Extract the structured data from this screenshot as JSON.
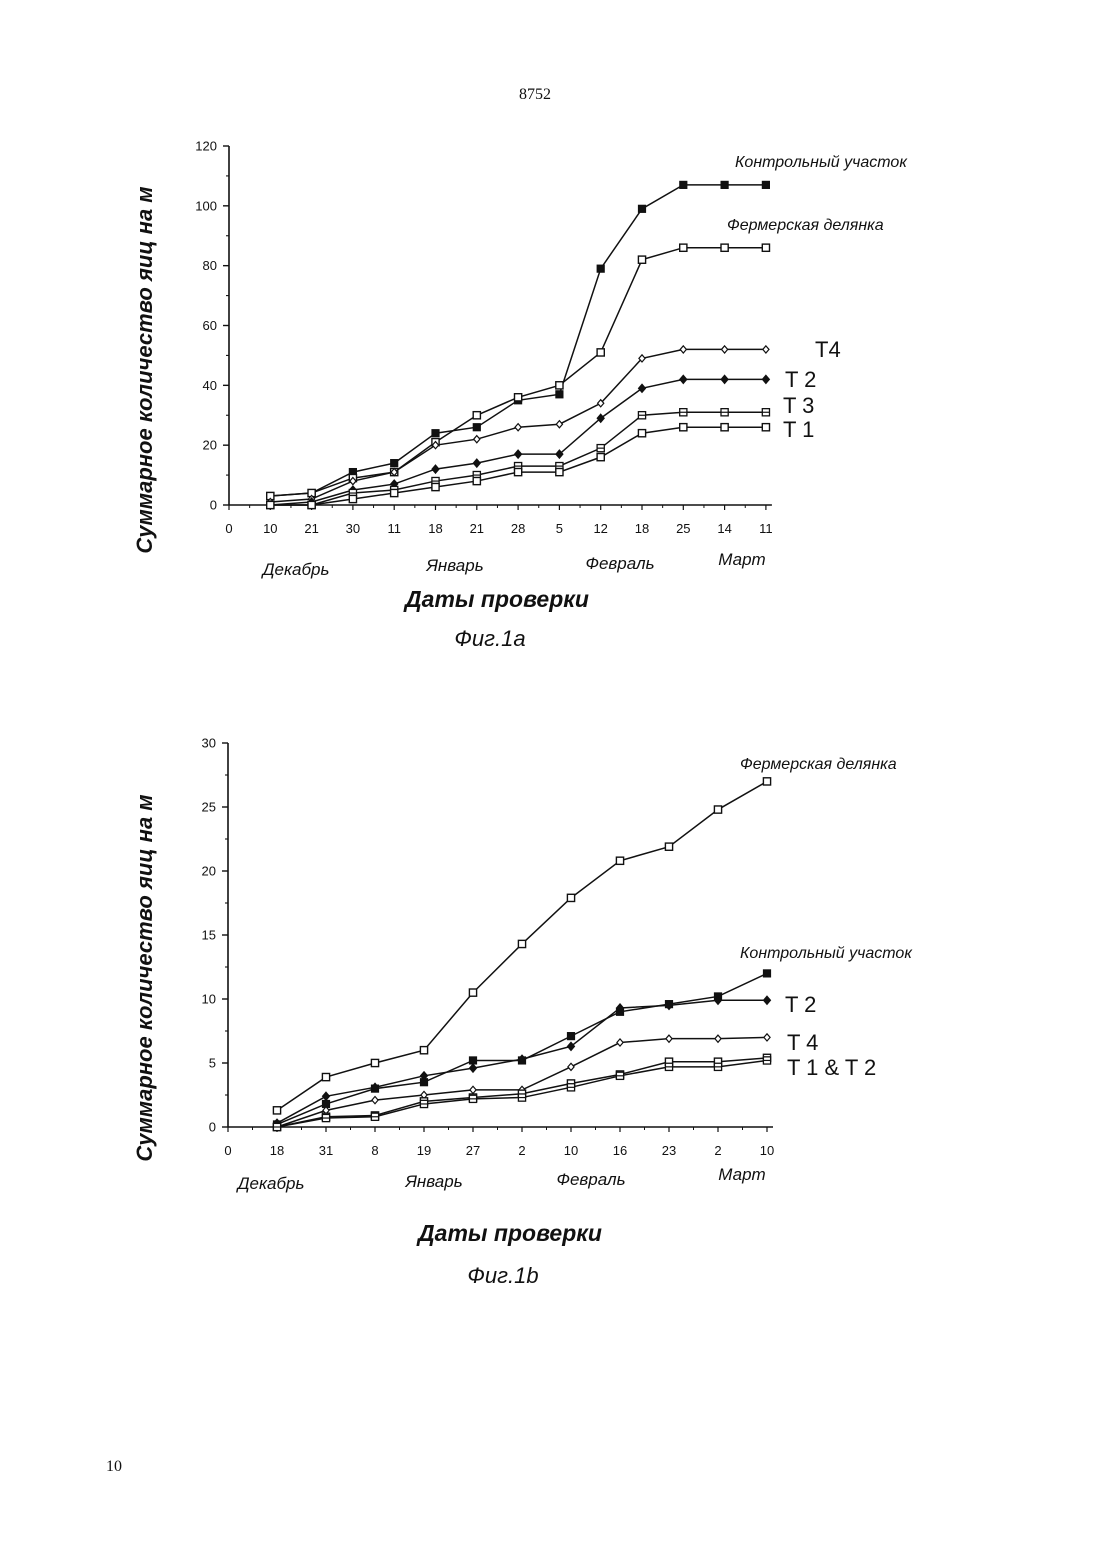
{
  "page": {
    "number": "8752",
    "footer_number": "10"
  },
  "chart_data": [
    {
      "type": "line",
      "caption": "Фиг.1а",
      "xlabel": "Даты проверки",
      "ylabel": "Суммарное количество яиц на м",
      "ylim": [
        0,
        120
      ],
      "yticks": [
        0,
        20,
        40,
        60,
        80,
        100,
        120
      ],
      "categories": [
        "0",
        "10",
        "21",
        "30",
        "11",
        "18",
        "21",
        "28",
        "5",
        "12",
        "18",
        "25",
        "14",
        "11"
      ],
      "months": [
        "Декабрь",
        "Январь",
        "Февраль",
        "Март"
      ],
      "grid": false,
      "series": [
        {
          "name": "Контрольный участок",
          "marker": "filled-square",
          "values": [
            null,
            3,
            4,
            11,
            14,
            24,
            26,
            35,
            37,
            79,
            99,
            107,
            107,
            107
          ]
        },
        {
          "name": "Фермерская делянка",
          "marker": "open-square",
          "values": [
            null,
            3,
            4,
            9,
            11,
            21,
            30,
            36,
            40,
            51,
            82,
            86,
            86,
            86
          ]
        },
        {
          "name": "T4",
          "marker": "open-diamond",
          "values": [
            null,
            1,
            2,
            8,
            11,
            20,
            22,
            26,
            27,
            34,
            49,
            52,
            52,
            52
          ]
        },
        {
          "name": "T 2",
          "marker": "filled-diamond",
          "values": [
            null,
            0,
            1,
            5,
            7,
            12,
            14,
            17,
            17,
            29,
            39,
            42,
            42,
            42
          ]
        },
        {
          "name": "T 3",
          "marker": "square-cross",
          "values": [
            null,
            0,
            0,
            4,
            5,
            8,
            10,
            13,
            13,
            19,
            30,
            31,
            31,
            31
          ]
        },
        {
          "name": "T 1",
          "marker": "open-square",
          "values": [
            null,
            0,
            0,
            2,
            4,
            6,
            8,
            11,
            11,
            16,
            24,
            26,
            26,
            26
          ]
        }
      ]
    },
    {
      "type": "line",
      "caption": "Фиг.1b",
      "xlabel": "Даты проверки",
      "ylabel": "Суммарное количество яиц на м",
      "ylim": [
        0,
        30
      ],
      "yticks": [
        0,
        5,
        10,
        15,
        20,
        25,
        30
      ],
      "categories": [
        "0",
        "18",
        "31",
        "8",
        "19",
        "27",
        "2",
        "10",
        "16",
        "23",
        "2",
        "10"
      ],
      "months": [
        "Декабрь",
        "Январь",
        "Февраль",
        "Март"
      ],
      "grid": false,
      "series": [
        {
          "name": "Фермерская делянка",
          "marker": "open-square",
          "values": [
            null,
            1.3,
            3.9,
            5.0,
            6.0,
            10.5,
            14.3,
            17.9,
            20.8,
            21.9,
            24.8,
            27.0
          ]
        },
        {
          "name": "Контрольный участок",
          "marker": "filled-square",
          "values": [
            null,
            0.2,
            1.8,
            3.0,
            3.5,
            5.2,
            5.2,
            7.1,
            9.0,
            9.6,
            10.2,
            12.0
          ]
        },
        {
          "name": "T 2",
          "marker": "filled-diamond",
          "values": [
            null,
            0.3,
            2.4,
            3.1,
            4.0,
            4.6,
            5.3,
            6.3,
            9.3,
            9.5,
            9.9,
            9.9
          ]
        },
        {
          "name": "T 4",
          "marker": "open-diamond",
          "values": [
            null,
            0.0,
            1.3,
            2.1,
            2.5,
            2.9,
            2.9,
            4.7,
            6.6,
            6.9,
            6.9,
            7.0
          ]
        },
        {
          "name": "T 1 & T 2",
          "marker": "open-square",
          "values": [
            null,
            0.0,
            0.8,
            0.9,
            2.0,
            2.3,
            2.6,
            3.4,
            4.1,
            5.1,
            5.1,
            5.4
          ]
        },
        {
          "name": "",
          "marker": "square-cross",
          "values": [
            null,
            0.0,
            0.7,
            0.8,
            1.8,
            2.2,
            2.3,
            3.1,
            4.0,
            4.7,
            4.7,
            5.2
          ]
        }
      ]
    }
  ]
}
